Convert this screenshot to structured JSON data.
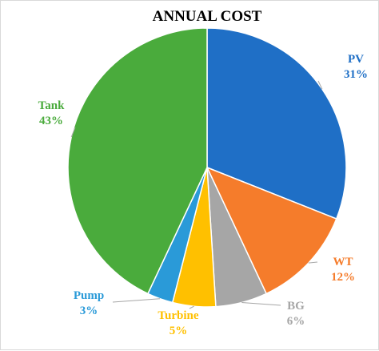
{
  "chart_data": {
    "type": "pie",
    "title": "ANNUAL COST",
    "slices": [
      {
        "name": "PV",
        "value": 31,
        "value_label": "31%",
        "color": "#1f6fc6"
      },
      {
        "name": "WT",
        "value": 12,
        "value_label": "12%",
        "color": "#f57c2b"
      },
      {
        "name": "BG",
        "value": 6,
        "value_label": "6%",
        "color": "#a6a6a6"
      },
      {
        "name": "Turbine",
        "value": 5,
        "value_label": "5%",
        "color": "#ffc000"
      },
      {
        "name": "Pump",
        "value": 3,
        "value_label": "3%",
        "color": "#2a9ad8"
      },
      {
        "name": "Tank",
        "value": 43,
        "value_label": "43%",
        "color": "#4aab3c"
      }
    ],
    "start_angle": "12 o'clock",
    "direction": "clockwise",
    "legend": "none",
    "labels": "outside with leader lines"
  }
}
